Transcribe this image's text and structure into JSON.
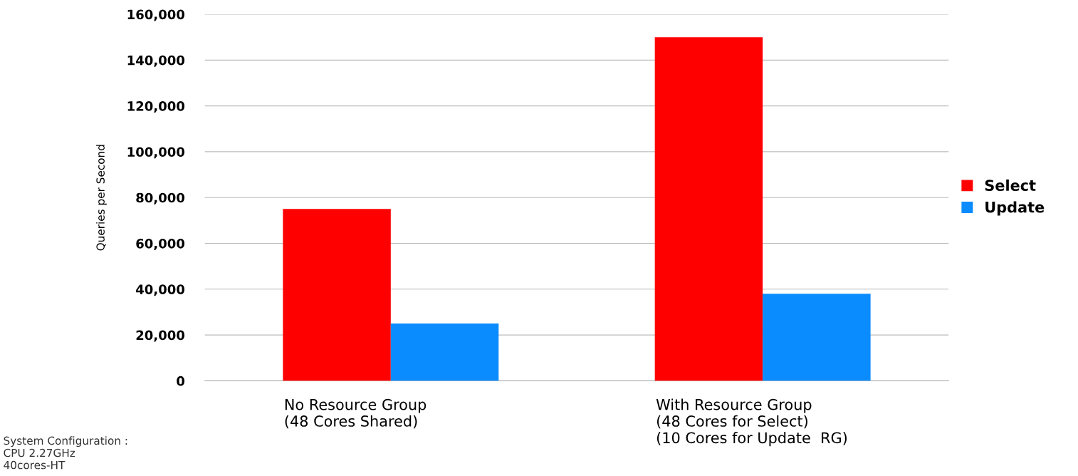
{
  "chart_data": {
    "type": "bar",
    "ylabel": "Queries per Second",
    "categories": [
      "No Resource Group\n(48 Cores Shared)",
      "With Resource Group\n(48 Cores for Select)\n(10 Cores for Update  RG)"
    ],
    "series": [
      {
        "name": "Select",
        "color": "#ff0000",
        "values": [
          75000,
          150000
        ]
      },
      {
        "name": "Update",
        "color": "#0a8cff",
        "values": [
          25000,
          38000
        ]
      }
    ],
    "ylim": [
      0,
      160000
    ],
    "yticks": [
      {
        "value": 0,
        "label": "0"
      },
      {
        "value": 20000,
        "label": "20,000"
      },
      {
        "value": 40000,
        "label": "40,000"
      },
      {
        "value": 60000,
        "label": "60,000"
      },
      {
        "value": 80000,
        "label": "80,000"
      },
      {
        "value": 100000,
        "label": "100,000"
      },
      {
        "value": 120000,
        "label": "120,000"
      },
      {
        "value": 140000,
        "label": "140,000"
      },
      {
        "value": 160000,
        "label": "160,000"
      }
    ],
    "grid": "y",
    "legend": "right",
    "annotations": [
      "System Configuration :\nCPU 2.27GHz\n40cores-HT"
    ]
  }
}
